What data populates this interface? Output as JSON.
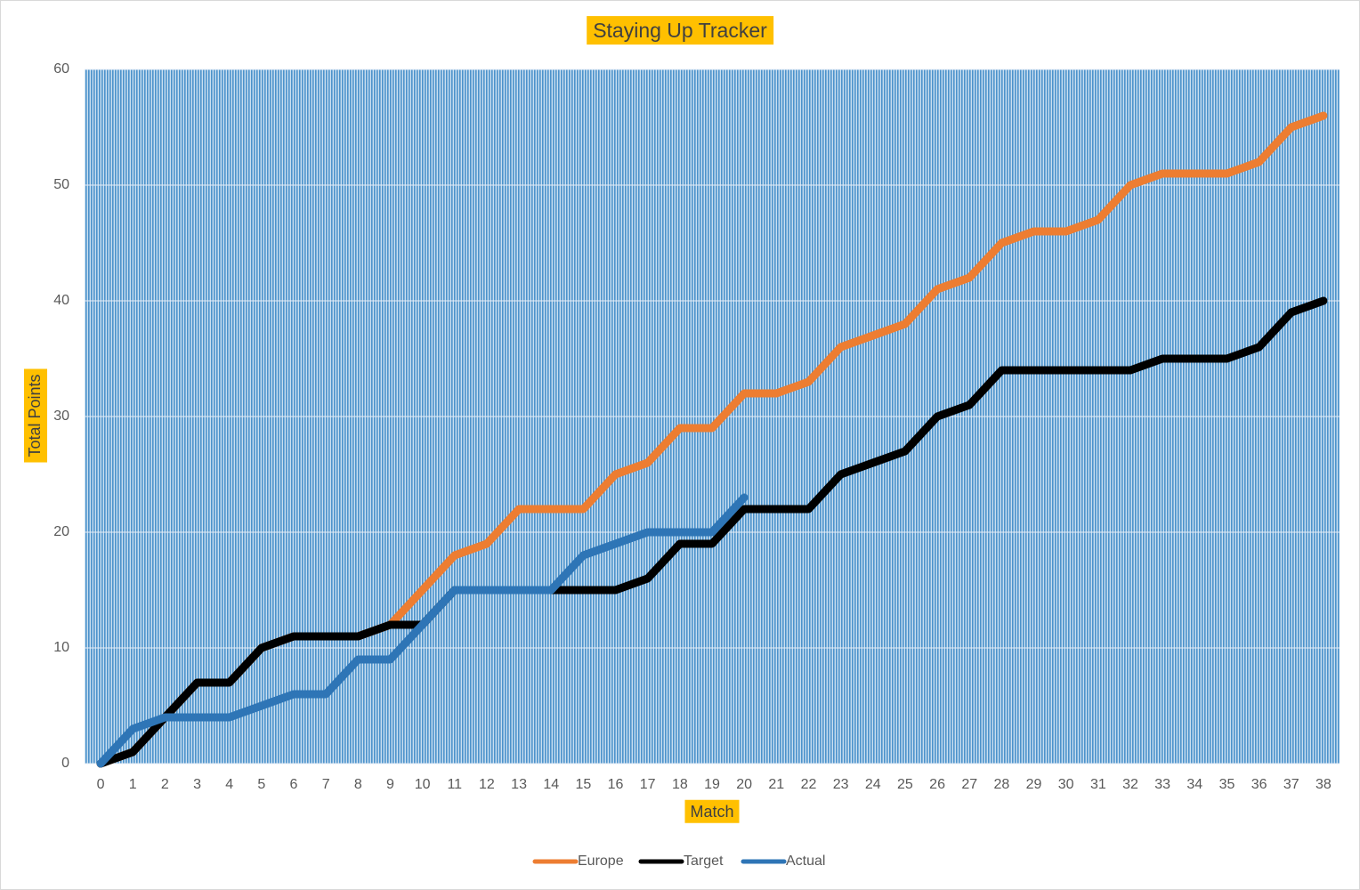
{
  "chart_data": {
    "type": "line",
    "title": "Staying Up Tracker",
    "x_label": "Match",
    "y_label": "Total Points",
    "categories": [
      0,
      1,
      2,
      3,
      4,
      5,
      6,
      7,
      8,
      9,
      10,
      11,
      12,
      13,
      14,
      15,
      16,
      17,
      18,
      19,
      20,
      21,
      22,
      23,
      24,
      25,
      26,
      27,
      28,
      29,
      30,
      31,
      32,
      33,
      34,
      35,
      36,
      37,
      38
    ],
    "series": [
      {
        "name": "Europe",
        "color": "#ed7d31",
        "values": [
          0,
          1,
          4,
          7,
          7,
          10,
          11,
          11,
          11,
          12,
          15,
          18,
          19,
          22,
          22,
          22,
          25,
          26,
          29,
          29,
          32,
          32,
          33,
          36,
          37,
          38,
          41,
          42,
          45,
          46,
          46,
          47,
          50,
          51,
          51,
          51,
          52,
          55,
          56
        ]
      },
      {
        "name": "Target",
        "color": "#000000",
        "values": [
          0,
          1,
          4,
          7,
          7,
          10,
          11,
          11,
          11,
          12,
          12,
          15,
          15,
          15,
          15,
          15,
          15,
          16,
          19,
          19,
          22,
          22,
          22,
          25,
          26,
          27,
          30,
          31,
          34,
          34,
          34,
          34,
          34,
          35,
          35,
          35,
          36,
          39,
          40
        ]
      },
      {
        "name": "Actual",
        "color": "#2e75b6",
        "values": [
          0,
          3,
          4,
          4,
          4,
          5,
          6,
          6,
          9,
          9,
          12,
          15,
          15,
          15,
          15,
          18,
          19,
          20,
          20,
          20,
          23,
          null,
          null,
          null,
          null,
          null,
          null,
          null,
          null,
          null,
          null,
          null,
          null,
          null,
          null,
          null,
          null,
          null,
          null
        ]
      }
    ],
    "ylim": [
      0,
      60
    ],
    "yticks": [
      0,
      10,
      20,
      30,
      40,
      50,
      60
    ],
    "grid": true,
    "legend": "bottom"
  }
}
